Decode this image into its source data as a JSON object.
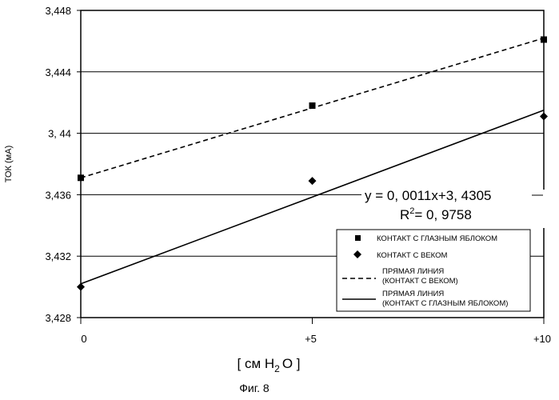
{
  "chart_data": {
    "type": "scatter",
    "title": "",
    "xlabel": "[ см H",
    "xlabel_sub": "2",
    "xlabel_end": "O ]",
    "ylabel": "ТОК (мА)",
    "x_categories": [
      "0",
      "+5",
      "+10"
    ],
    "x_values": [
      0,
      5,
      10
    ],
    "xlim": [
      0,
      10
    ],
    "ylim": [
      3.428,
      3.448
    ],
    "y_ticks": [
      3.428,
      3.432,
      3.436,
      3.44,
      3.444,
      3.448
    ],
    "y_tick_labels": [
      "3,428",
      "3,432",
      "3,436",
      "3, 44",
      "3,444",
      "3,448"
    ],
    "grid": "horizontal",
    "legend_position": "bottom-right",
    "series": [
      {
        "name": "КОНТАКТ С ГЛАЗНЫМ ЯБЛОКОМ",
        "marker": "square",
        "x": [
          0,
          5,
          10
        ],
        "y": [
          3.4371,
          3.4418,
          3.4461
        ]
      },
      {
        "name": "КОНТАКТ С ВЕКОМ",
        "marker": "diamond",
        "x": [
          0,
          5,
          10
        ],
        "y": [
          3.43,
          3.4369,
          3.4411
        ]
      }
    ],
    "trendlines": [
      {
        "name_line1": "ПРЯМАЯ ЛИНИЯ",
        "name_line2": "(КОНТАКТ С ВЕКОМ)",
        "style": "dashed",
        "y_start": 3.4371,
        "y_end": 3.4462
      },
      {
        "name_line1": "ПРЯМАЯ ЛИНИЯ",
        "name_line2": "(КОНТАКТ С ГЛАЗНЫМ ЯБЛОКОМ)",
        "style": "solid",
        "y_start": 3.4302,
        "y_end": 3.4415
      }
    ],
    "annotation": {
      "equation": "y = 0, 0011x+3, 4305",
      "r2_label": "R",
      "r2_sup": "2",
      "r2_value": "= 0, 9758"
    }
  },
  "caption": "Фиг. 8"
}
